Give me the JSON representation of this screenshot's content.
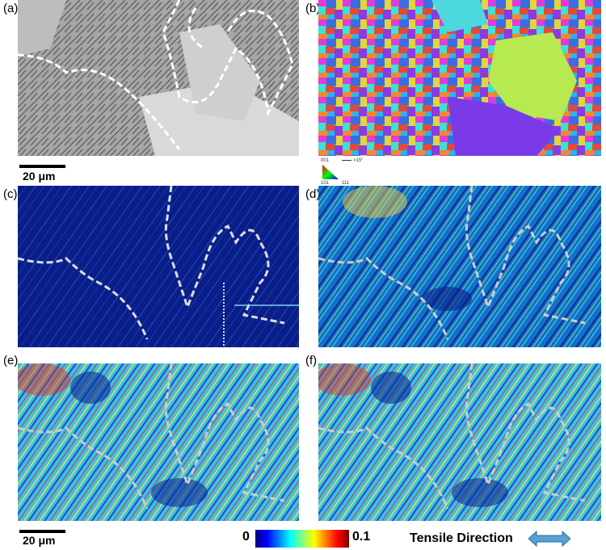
{
  "panels": [
    {
      "id": "a",
      "label": "(a)"
    },
    {
      "id": "b",
      "label": "(b)"
    },
    {
      "id": "c",
      "label": "(c)"
    },
    {
      "id": "d",
      "label": "(d)"
    },
    {
      "id": "e",
      "label": "(e)"
    },
    {
      "id": "f",
      "label": "(f)"
    }
  ],
  "scalebars": {
    "top": "20 μm",
    "bottom": "20 μm"
  },
  "ipf_legend": {
    "tl": "001",
    "bl": "101",
    "br": "111",
    "boundary": ">15°"
  },
  "colorbar": {
    "min": "0",
    "max": "0.1",
    "colors": [
      "#00007f",
      "#0000ff",
      "#007fff",
      "#00ffff",
      "#7fff7f",
      "#ffff00",
      "#ff7f00",
      "#ff0000",
      "#7f0000"
    ]
  },
  "tensile_direction": {
    "label": "Tensile Direction",
    "arrow_icon": "double-arrow-icon"
  }
}
